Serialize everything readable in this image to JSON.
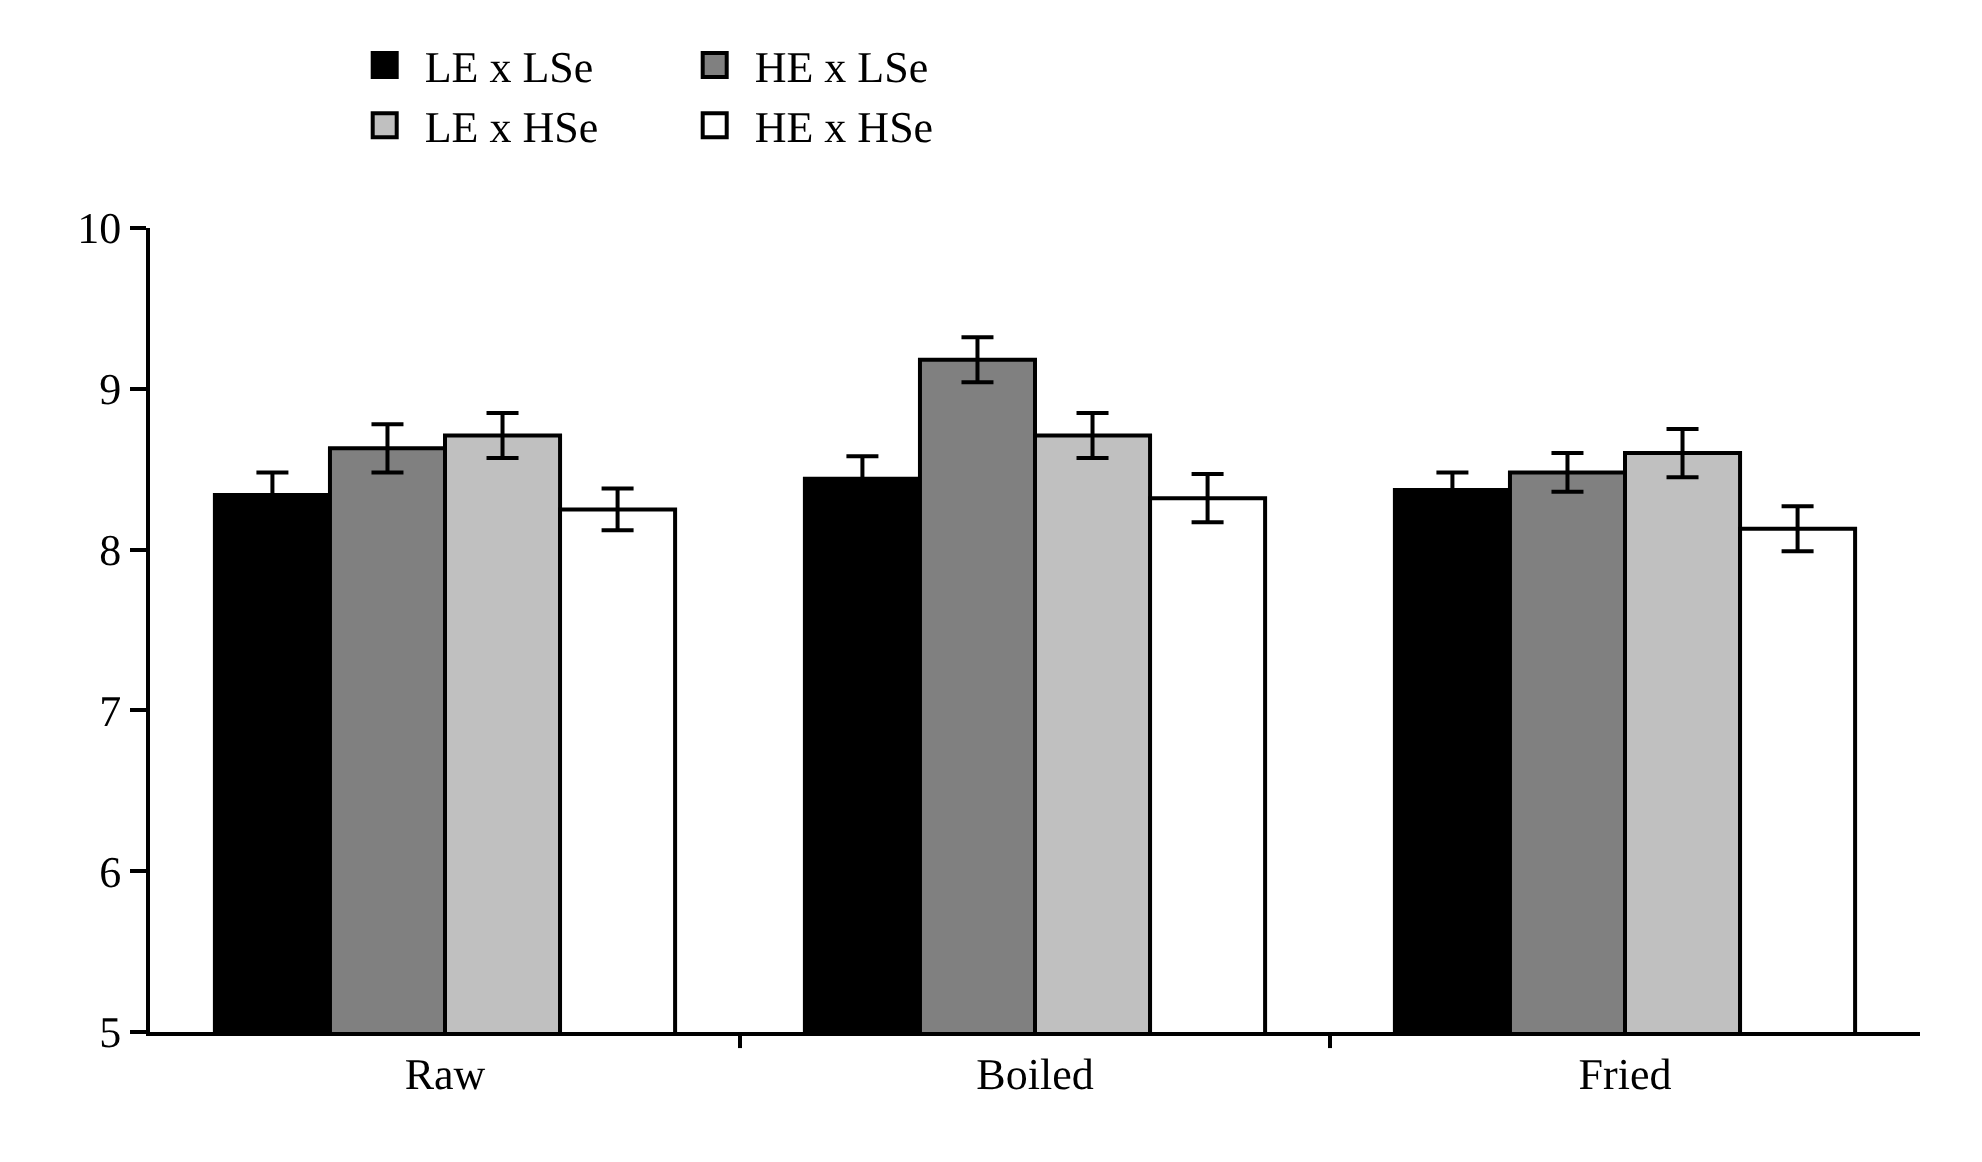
{
  "chart_data": {
    "type": "bar",
    "categories": [
      "Raw",
      "Boiled",
      "Fried"
    ],
    "series": [
      {
        "name": "LE x LSe",
        "color": "#000000",
        "values": [
          8.34,
          8.44,
          8.37
        ],
        "errors": [
          0.14,
          0.14,
          0.11
        ]
      },
      {
        "name": "HE x LSe",
        "color": "#808080",
        "values": [
          8.63,
          9.18,
          8.48
        ],
        "errors": [
          0.15,
          0.14,
          0.12
        ]
      },
      {
        "name": "LE x HSe",
        "color": "#c0c0c0",
        "values": [
          8.71,
          8.71,
          8.6
        ],
        "errors": [
          0.14,
          0.14,
          0.15
        ]
      },
      {
        "name": "HE x HSe",
        "color": "#ffffff",
        "values": [
          8.25,
          8.32,
          8.13
        ],
        "errors": [
          0.13,
          0.15,
          0.14
        ]
      }
    ],
    "ylim": [
      5,
      10
    ],
    "yticks": [
      5,
      6,
      7,
      8,
      9,
      10
    ],
    "legend": "top"
  }
}
